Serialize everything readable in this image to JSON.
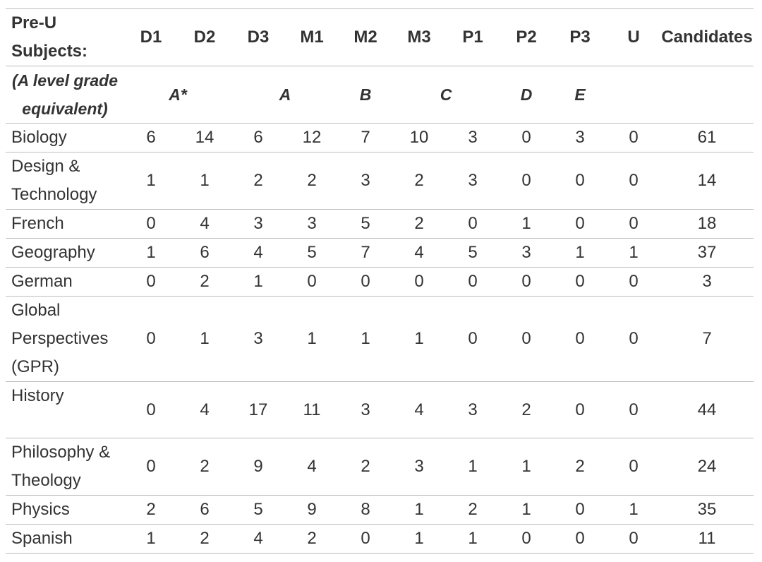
{
  "table": {
    "header": [
      "Pre-U Subjects:",
      "D1",
      "D2",
      "D3",
      "M1",
      "M2",
      "M3",
      "P1",
      "P2",
      "P3",
      "U",
      "Candidates"
    ],
    "equivalent": {
      "label": "(A level grade equivalent)",
      "grades": [
        "A*",
        "A",
        "B",
        "C",
        "D",
        "E"
      ]
    },
    "rows": [
      [
        "Biology",
        6,
        14,
        6,
        12,
        7,
        10,
        3,
        0,
        3,
        0,
        61
      ],
      [
        "Design & Technology",
        1,
        1,
        2,
        2,
        3,
        2,
        3,
        0,
        0,
        0,
        14
      ],
      [
        "French",
        0,
        4,
        3,
        3,
        5,
        2,
        0,
        1,
        0,
        0,
        18
      ],
      [
        "Geography",
        1,
        6,
        4,
        5,
        7,
        4,
        5,
        3,
        1,
        1,
        37
      ],
      [
        "German",
        0,
        2,
        1,
        0,
        0,
        0,
        0,
        0,
        0,
        0,
        3
      ],
      [
        "Global Perspectives (GPR)",
        0,
        1,
        3,
        1,
        1,
        1,
        0,
        0,
        0,
        0,
        7
      ],
      [
        "History",
        0,
        4,
        17,
        11,
        3,
        4,
        3,
        2,
        0,
        0,
        44
      ],
      [
        "Philosophy & Theology",
        0,
        2,
        9,
        4,
        2,
        3,
        1,
        1,
        2,
        0,
        24
      ],
      [
        "Physics",
        2,
        6,
        5,
        9,
        8,
        1,
        2,
        1,
        0,
        1,
        35
      ],
      [
        "Spanish",
        1,
        2,
        4,
        2,
        0,
        1,
        1,
        0,
        0,
        0,
        11
      ]
    ]
  }
}
